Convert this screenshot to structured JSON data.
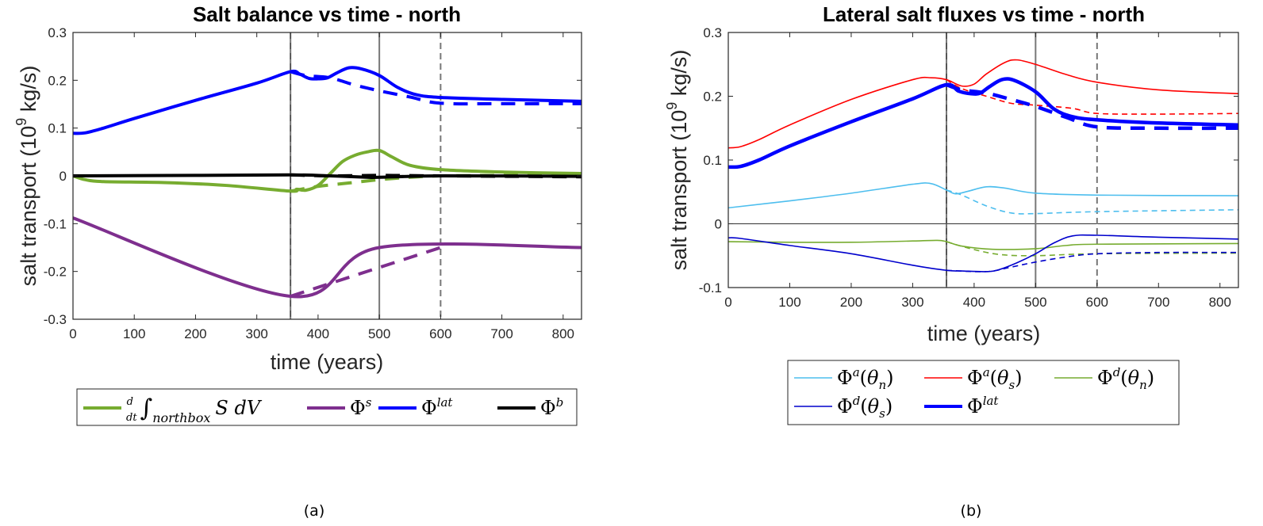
{
  "captions": [
    "(a)",
    "(b)"
  ],
  "chart_data": [
    {
      "type": "line",
      "title": "Salt balance vs time - north",
      "xlabel": "time (years)",
      "ylabel": "salt transport (10^9 kg/s)",
      "ylabel_parts": {
        "pre": "salt transport (10",
        "sup": "9",
        "post": " kg/s)"
      },
      "xlim": [
        0,
        830
      ],
      "ylim": [
        -0.3,
        0.3
      ],
      "xticks": [
        0,
        100,
        200,
        300,
        400,
        500,
        600,
        700,
        800
      ],
      "yticks": [
        -0.3,
        -0.2,
        -0.1,
        0,
        0.1,
        0.2,
        0.3
      ],
      "ytick_labels": [
        "-0.3",
        "-0.2",
        "-0.1",
        "0",
        "0.1",
        "0.2",
        "0.3"
      ],
      "grid": false,
      "legend_position": "bottom-outside",
      "vlines": [
        {
          "x": 355,
          "style": "solid-dashed"
        },
        {
          "x": 500,
          "style": "solid"
        },
        {
          "x": 600,
          "style": "dashed"
        }
      ],
      "series": [
        {
          "name": "d/dt ∫northbox S dV",
          "legend_label": {
            "frac_num": "d",
            "frac_den": "dt",
            "int": "∫",
            "sub": "northbox",
            "rest": "S dV"
          },
          "color": "#77AC30",
          "width": "thick",
          "style": "solid",
          "points": [
            [
              0,
              0
            ],
            [
              20,
              -0.008
            ],
            [
              50,
              -0.012
            ],
            [
              150,
              -0.014
            ],
            [
              250,
              -0.02
            ],
            [
              355,
              -0.032
            ],
            [
              365,
              -0.028
            ],
            [
              380,
              -0.03
            ],
            [
              400,
              -0.02
            ],
            [
              420,
              0.005
            ],
            [
              440,
              0.03
            ],
            [
              460,
              0.043
            ],
            [
              480,
              0.05
            ],
            [
              500,
              0.053
            ],
            [
              520,
              0.04
            ],
            [
              550,
              0.022
            ],
            [
              600,
              0.013
            ],
            [
              700,
              0.008
            ],
            [
              830,
              0.005
            ]
          ]
        },
        {
          "name": "d/dt ∫northbox S dV (dashed)",
          "color": "#77AC30",
          "width": "thick",
          "style": "dashed",
          "points": [
            [
              355,
              -0.032
            ],
            [
              400,
              -0.022
            ],
            [
              450,
              -0.015
            ],
            [
              500,
              -0.008
            ],
            [
              550,
              -0.003
            ],
            [
              600,
              0
            ],
            [
              700,
              0.001
            ],
            [
              830,
              0.002
            ]
          ]
        },
        {
          "name": "Φ^s",
          "legend_label": {
            "base": "Φ",
            "sup": "s"
          },
          "color": "#7E2F8E",
          "width": "thick",
          "style": "solid",
          "points": [
            [
              0,
              -0.088
            ],
            [
              355,
              -0.252
            ],
            [
              500,
              -0.15
            ],
            [
              830,
              -0.15
            ]
          ]
        },
        {
          "name": "Φ^s (dashed)",
          "color": "#7E2F8E",
          "width": "thick",
          "style": "dashed",
          "points": [
            [
              355,
              -0.252
            ],
            [
              600,
              -0.15
            ]
          ]
        },
        {
          "name": "Φ^lat",
          "legend_label": {
            "base": "Φ",
            "sup": "lat"
          },
          "color": "#0000FF",
          "width": "thick",
          "style": "solid",
          "points": [
            [
              0,
              0.089
            ],
            [
              20,
              0.09
            ],
            [
              50,
              0.1
            ],
            [
              100,
              0.12
            ],
            [
              200,
              0.158
            ],
            [
              300,
              0.194
            ],
            [
              355,
              0.218
            ],
            [
              370,
              0.213
            ],
            [
              385,
              0.204
            ],
            [
              400,
              0.203
            ],
            [
              415,
              0.205
            ],
            [
              430,
              0.215
            ],
            [
              450,
              0.226
            ],
            [
              470,
              0.224
            ],
            [
              500,
              0.21
            ],
            [
              530,
              0.185
            ],
            [
              560,
              0.17
            ],
            [
              600,
              0.164
            ],
            [
              700,
              0.16
            ],
            [
              830,
              0.156
            ]
          ]
        },
        {
          "name": "Φ^lat (dashed)",
          "color": "#0000FF",
          "width": "thick",
          "style": "dashed",
          "points": [
            [
              355,
              0.218
            ],
            [
              380,
              0.21
            ],
            [
              420,
              0.205
            ],
            [
              460,
              0.19
            ],
            [
              500,
              0.178
            ],
            [
              550,
              0.165
            ],
            [
              600,
              0.152
            ],
            [
              700,
              0.151
            ],
            [
              830,
              0.151
            ]
          ]
        },
        {
          "name": "Φ^b",
          "legend_label": {
            "base": "Φ",
            "sup": "b"
          },
          "color": "#000000",
          "width": "thick",
          "style": "solid",
          "points": [
            [
              0,
              0
            ],
            [
              200,
              0.001
            ],
            [
              355,
              0.002
            ],
            [
              420,
              0
            ],
            [
              480,
              -0.003
            ],
            [
              500,
              -0.003
            ],
            [
              600,
              0
            ],
            [
              830,
              -0.001
            ]
          ]
        },
        {
          "name": "Φ^b (dashed)",
          "color": "#000000",
          "width": "thick",
          "style": "dashed",
          "points": [
            [
              355,
              0.002
            ],
            [
              420,
              0
            ],
            [
              500,
              0.001
            ],
            [
              600,
              0
            ],
            [
              830,
              -0.002
            ]
          ]
        }
      ]
    },
    {
      "type": "line",
      "title": "Lateral salt fluxes vs time - north",
      "xlabel": "time (years)",
      "ylabel": "salt transport (10^9 kg/s)",
      "ylabel_parts": {
        "pre": "salt transport (10",
        "sup": "9",
        "post": " kg/s)"
      },
      "xlim": [
        0,
        830
      ],
      "ylim": [
        -0.1,
        0.3
      ],
      "xticks": [
        0,
        100,
        200,
        300,
        400,
        500,
        600,
        700,
        800
      ],
      "yticks": [
        -0.1,
        0,
        0.1,
        0.2,
        0.3
      ],
      "ytick_labels": [
        "-0.1",
        "0",
        "0.1",
        "0.2",
        "0.3"
      ],
      "grid": false,
      "hline": 0,
      "legend_position": "bottom-outside",
      "vlines": [
        {
          "x": 355,
          "style": "solid-dashed"
        },
        {
          "x": 500,
          "style": "solid"
        },
        {
          "x": 600,
          "style": "dashed"
        }
      ],
      "series": [
        {
          "name": "Φ^a(θn)",
          "legend_label": {
            "base": "Φ",
            "sup": "a",
            "arg": "θ",
            "argsub": "n"
          },
          "color": "#4DBEEE",
          "width": "thin",
          "style": "solid",
          "points": [
            [
              0,
              0.025
            ],
            [
              100,
              0.036
            ],
            [
              200,
              0.048
            ],
            [
              300,
              0.062
            ],
            [
              330,
              0.063
            ],
            [
              355,
              0.053
            ],
            [
              370,
              0.047
            ],
            [
              390,
              0.051
            ],
            [
              420,
              0.058
            ],
            [
              450,
              0.056
            ],
            [
              500,
              0.048
            ],
            [
              600,
              0.045
            ],
            [
              830,
              0.044
            ]
          ]
        },
        {
          "name": "Φ^a(θn) (dashed)",
          "color": "#4DBEEE",
          "width": "thin",
          "style": "dashed",
          "points": [
            [
              355,
              0.053
            ],
            [
              380,
              0.045
            ],
            [
              420,
              0.028
            ],
            [
              460,
              0.017
            ],
            [
              500,
              0.016
            ],
            [
              600,
              0.019
            ],
            [
              830,
              0.022
            ]
          ]
        },
        {
          "name": "Φ^a(θs)",
          "legend_label": {
            "base": "Φ",
            "sup": "a",
            "arg": "θ",
            "argsub": "s"
          },
          "color": "#FF0000",
          "width": "thin",
          "style": "solid",
          "points": [
            [
              0,
              0.119
            ],
            [
              20,
              0.121
            ],
            [
              50,
              0.132
            ],
            [
              100,
              0.155
            ],
            [
              200,
              0.195
            ],
            [
              300,
              0.226
            ],
            [
              330,
              0.229
            ],
            [
              355,
              0.226
            ],
            [
              380,
              0.216
            ],
            [
              400,
              0.219
            ],
            [
              420,
              0.235
            ],
            [
              450,
              0.253
            ],
            [
              470,
              0.257
            ],
            [
              500,
              0.25
            ],
            [
              550,
              0.234
            ],
            [
              600,
              0.222
            ],
            [
              700,
              0.21
            ],
            [
              830,
              0.204
            ]
          ]
        },
        {
          "name": "Φ^a(θs) (dashed)",
          "color": "#FF0000",
          "width": "thin",
          "style": "dashed",
          "points": [
            [
              355,
              0.226
            ],
            [
              380,
              0.212
            ],
            [
              420,
              0.2
            ],
            [
              460,
              0.189
            ],
            [
              500,
              0.186
            ],
            [
              560,
              0.181
            ],
            [
              600,
              0.173
            ],
            [
              700,
              0.172
            ],
            [
              830,
              0.173
            ]
          ]
        },
        {
          "name": "Φ^d(θn)",
          "legend_label": {
            "base": "Φ",
            "sup": "d",
            "arg": "θ",
            "argsub": "n"
          },
          "color": "#77AC30",
          "width": "thin",
          "style": "solid",
          "points": [
            [
              0,
              -0.028
            ],
            [
              100,
              -0.029
            ],
            [
              200,
              -0.029
            ],
            [
              300,
              -0.027
            ],
            [
              340,
              -0.026
            ],
            [
              355,
              -0.028
            ],
            [
              380,
              -0.035
            ],
            [
              430,
              -0.04
            ],
            [
              500,
              -0.039
            ],
            [
              550,
              -0.034
            ],
            [
              600,
              -0.032
            ],
            [
              830,
              -0.031
            ]
          ]
        },
        {
          "name": "Φ^d(θn) (dashed)",
          "color": "#77AC30",
          "width": "thin",
          "style": "dashed",
          "points": [
            [
              355,
              -0.028
            ],
            [
              390,
              -0.038
            ],
            [
              440,
              -0.048
            ],
            [
              500,
              -0.05
            ],
            [
              600,
              -0.047
            ],
            [
              830,
              -0.046
            ]
          ]
        },
        {
          "name": "Φ^d(θs)",
          "legend_label": {
            "base": "Φ",
            "sup": "d",
            "arg": "θ",
            "argsub": "s"
          },
          "color": "#0000CC",
          "width": "thin",
          "style": "solid",
          "points": [
            [
              0,
              -0.022
            ],
            [
              20,
              -0.023
            ],
            [
              100,
              -0.034
            ],
            [
              200,
              -0.047
            ],
            [
              300,
              -0.065
            ],
            [
              355,
              -0.073
            ],
            [
              380,
              -0.074
            ],
            [
              420,
              -0.075
            ],
            [
              440,
              -0.072
            ],
            [
              470,
              -0.061
            ],
            [
              500,
              -0.047
            ],
            [
              530,
              -0.03
            ],
            [
              560,
              -0.019
            ],
            [
              600,
              -0.018
            ],
            [
              700,
              -0.021
            ],
            [
              830,
              -0.024
            ]
          ]
        },
        {
          "name": "Φ^d(θs) (dashed)",
          "color": "#0000CC",
          "width": "thin",
          "style": "dashed",
          "points": [
            [
              355,
              -0.073
            ],
            [
              420,
              -0.075
            ],
            [
              460,
              -0.068
            ],
            [
              500,
              -0.06
            ],
            [
              550,
              -0.052
            ],
            [
              600,
              -0.047
            ],
            [
              700,
              -0.045
            ],
            [
              830,
              -0.045
            ]
          ]
        },
        {
          "name": "Φ^lat",
          "legend_label": {
            "base": "Φ",
            "sup": "lat"
          },
          "color": "#0000FF",
          "width": "thick",
          "style": "solid",
          "points": [
            [
              0,
              0.089
            ],
            [
              20,
              0.09
            ],
            [
              50,
              0.1
            ],
            [
              100,
              0.122
            ],
            [
              200,
              0.16
            ],
            [
              300,
              0.196
            ],
            [
              355,
              0.218
            ],
            [
              375,
              0.208
            ],
            [
              395,
              0.204
            ],
            [
              410,
              0.205
            ],
            [
              425,
              0.215
            ],
            [
              445,
              0.226
            ],
            [
              465,
              0.225
            ],
            [
              500,
              0.207
            ],
            [
              530,
              0.18
            ],
            [
              560,
              0.168
            ],
            [
              600,
              0.163
            ],
            [
              700,
              0.158
            ],
            [
              830,
              0.155
            ]
          ]
        },
        {
          "name": "Φ^lat (dashed)",
          "color": "#0000FF",
          "width": "thick",
          "style": "dashed",
          "points": [
            [
              355,
              0.218
            ],
            [
              380,
              0.21
            ],
            [
              420,
              0.205
            ],
            [
              460,
              0.195
            ],
            [
              500,
              0.184
            ],
            [
              550,
              0.167
            ],
            [
              600,
              0.152
            ],
            [
              700,
              0.15
            ],
            [
              830,
              0.15
            ]
          ]
        }
      ]
    }
  ]
}
